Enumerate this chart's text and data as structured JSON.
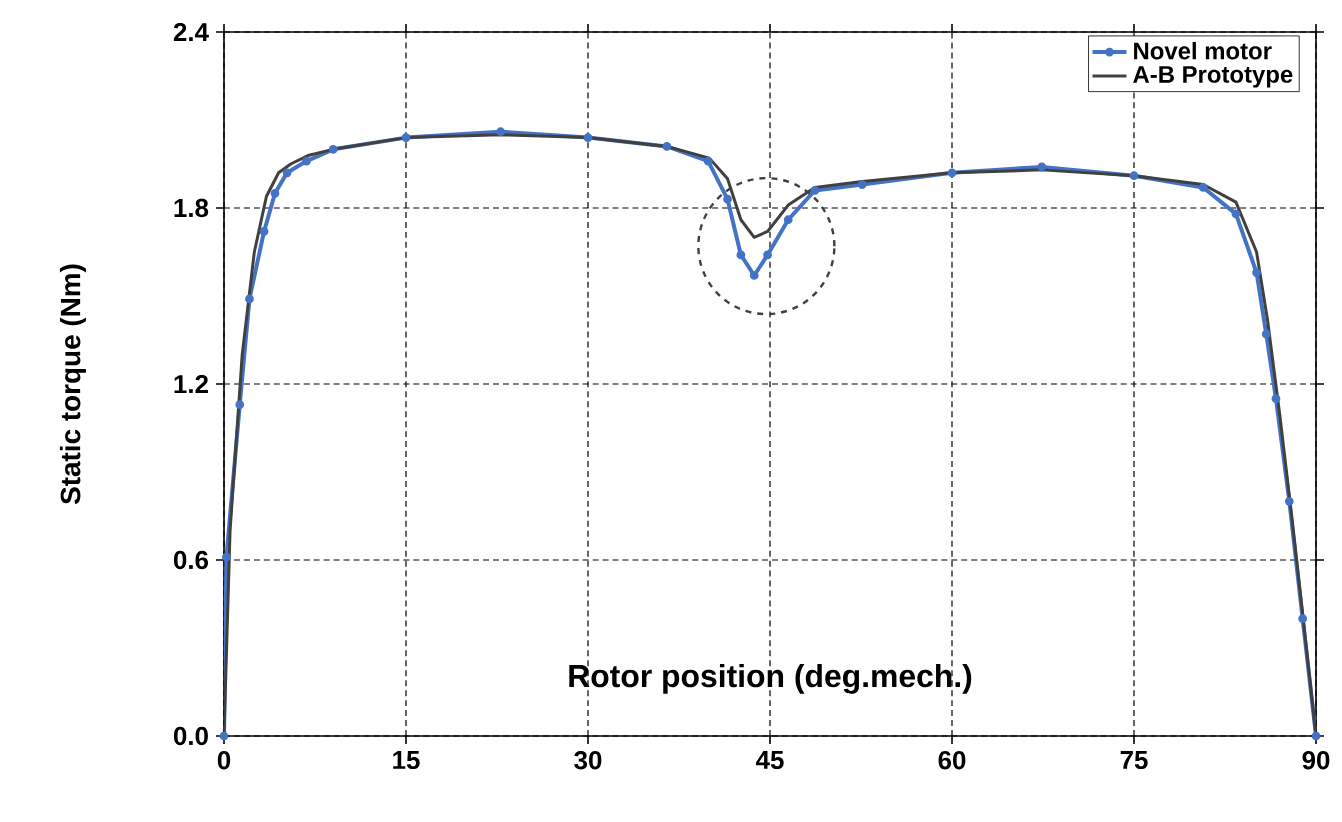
{
  "chart_data": {
    "type": "line",
    "xlabel": "Rotor position  (deg.mech.)",
    "ylabel": "Static torque (Nm)",
    "xlim": [
      0,
      90
    ],
    "ylim": [
      0,
      2.4
    ],
    "xticks": [
      0,
      15,
      30,
      45,
      60,
      75,
      90
    ],
    "yticks": [
      {
        "value": 0,
        "label": "0.0"
      },
      {
        "value": 0.6,
        "label": "0.6"
      },
      {
        "value": 1.2,
        "label": "1.2"
      },
      {
        "value": 1.8,
        "label": "1.8"
      },
      {
        "value": 2.4,
        "label": "2.4"
      }
    ],
    "grid": true,
    "legend": "top right",
    "series": [
      {
        "name": "Novel motor",
        "color": "#4472c4",
        "marker": "circle",
        "x": [
          0,
          0.2,
          1.3,
          2.1,
          3.3,
          4.2,
          5.2,
          6.8,
          9,
          15,
          22.8,
          30,
          36.5,
          39.9,
          41.5,
          42.6,
          43.7,
          44.8,
          46.5,
          48.7,
          52.6,
          60,
          67.4,
          75,
          80.7,
          83.4,
          85.1,
          85.9,
          86.7,
          87.8,
          88.9,
          90
        ],
        "values": [
          0,
          0.61,
          1.13,
          1.49,
          1.72,
          1.85,
          1.92,
          1.96,
          2.0,
          2.04,
          2.06,
          2.04,
          2.01,
          1.96,
          1.83,
          1.64,
          1.57,
          1.64,
          1.76,
          1.86,
          1.88,
          1.92,
          1.94,
          1.91,
          1.87,
          1.78,
          1.58,
          1.37,
          1.15,
          0.8,
          0.4,
          0
        ]
      },
      {
        "name": "A-B Prototype",
        "color": "#404040",
        "marker": "none",
        "x": [
          0,
          0.5,
          1.5,
          2.5,
          3.5,
          4.5,
          5.5,
          7,
          9,
          15,
          22.8,
          30,
          36.5,
          40,
          41.5,
          42.6,
          43.7,
          44.8,
          46.5,
          48.7,
          52.6,
          60,
          67.4,
          75,
          80.7,
          83.4,
          85.1,
          86,
          87,
          88,
          89,
          90
        ],
        "values": [
          0,
          0.7,
          1.3,
          1.65,
          1.84,
          1.92,
          1.95,
          1.98,
          2.0,
          2.04,
          2.05,
          2.04,
          2.01,
          1.97,
          1.9,
          1.76,
          1.7,
          1.72,
          1.81,
          1.87,
          1.89,
          1.92,
          1.93,
          1.91,
          1.88,
          1.82,
          1.65,
          1.42,
          1.1,
          0.75,
          0.38,
          0
        ]
      }
    ]
  }
}
